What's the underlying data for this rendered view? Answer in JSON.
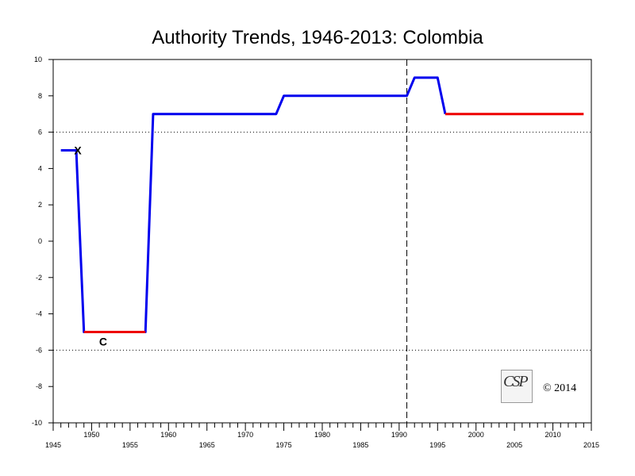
{
  "chart_data": {
    "type": "line",
    "title": "Authority Trends, 1946-2013: Colombia",
    "xlabel": "",
    "ylabel": "",
    "xlim": [
      1945,
      2015
    ],
    "ylim": [
      -10,
      10
    ],
    "x_ticks_major": [
      1945,
      1950,
      1955,
      1960,
      1965,
      1970,
      1975,
      1980,
      1985,
      1990,
      1995,
      2000,
      2005,
      2010,
      2015
    ],
    "y_ticks": [
      10,
      8,
      6,
      4,
      2,
      0,
      -2,
      -4,
      -6,
      -8,
      -10
    ],
    "reference_lines_y": [
      6,
      -6
    ],
    "reference_line_x": 1991,
    "series": [
      {
        "color": "#0000ee",
        "points": [
          [
            1946,
            5
          ],
          [
            1948,
            5
          ],
          [
            1949,
            -5
          ],
          [
            1957,
            -5
          ],
          [
            1958,
            7
          ],
          [
            1974,
            7
          ],
          [
            1975,
            8
          ],
          [
            1991,
            8
          ],
          [
            1992,
            9
          ],
          [
            1995,
            9
          ],
          [
            1996,
            7
          ]
        ]
      },
      {
        "color": "#ee0000",
        "segments": [
          [
            [
              1949,
              -5
            ],
            [
              1957,
              -5
            ]
          ],
          [
            [
              1996,
              7
            ],
            [
              2014,
              7
            ]
          ]
        ]
      }
    ],
    "annotations": [
      {
        "text": "X",
        "x": 1948,
        "y": 5
      },
      {
        "text": "C",
        "x": 1951.5,
        "y": -5
      }
    ]
  },
  "logo_text": "CSP",
  "copyright": "© 2014"
}
